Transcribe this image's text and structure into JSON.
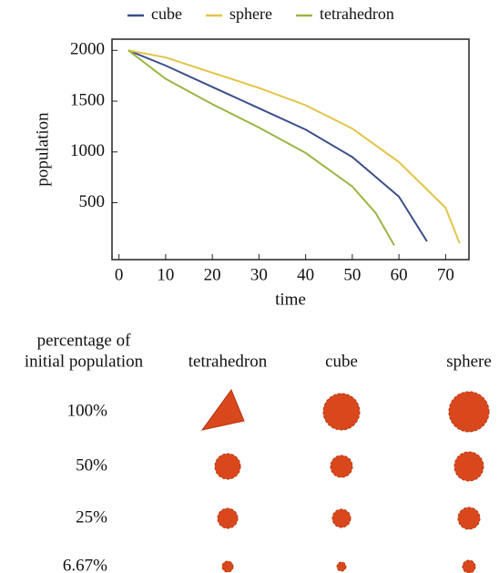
{
  "chart_data": {
    "type": "line",
    "xlabel": "time",
    "ylabel": "population",
    "xlim": [
      -1.5,
      75
    ],
    "xticks": [
      0,
      10,
      20,
      30,
      40,
      50,
      60,
      70
    ],
    "ylim": [
      -60,
      2110
    ],
    "yticks": [
      500,
      1000,
      1500,
      2000
    ],
    "grid": false,
    "legend": "top",
    "series": [
      {
        "name": "cube",
        "color": "#3b4f8a",
        "x": [
          2,
          10,
          20,
          30,
          40,
          50,
          60,
          66
        ],
        "values": [
          2000,
          1850,
          1640,
          1430,
          1220,
          950,
          560,
          120
        ]
      },
      {
        "name": "sphere",
        "color": "#e3c447",
        "x": [
          2,
          10,
          20,
          30,
          40,
          50,
          60,
          70,
          73
        ],
        "values": [
          2000,
          1930,
          1780,
          1630,
          1460,
          1230,
          900,
          450,
          100
        ]
      },
      {
        "name": "tetrahedron",
        "color": "#9ab545",
        "x": [
          2,
          10,
          20,
          30,
          40,
          50,
          55,
          59
        ],
        "values": [
          2000,
          1720,
          1470,
          1240,
          990,
          660,
          400,
          80
        ]
      }
    ]
  },
  "table": {
    "corner": [
      "percentage of",
      "initial population"
    ],
    "columns": [
      "tetrahedron",
      "cube",
      "sphere"
    ],
    "rows": [
      "100%",
      "50%",
      "25%",
      "6.67%"
    ]
  }
}
